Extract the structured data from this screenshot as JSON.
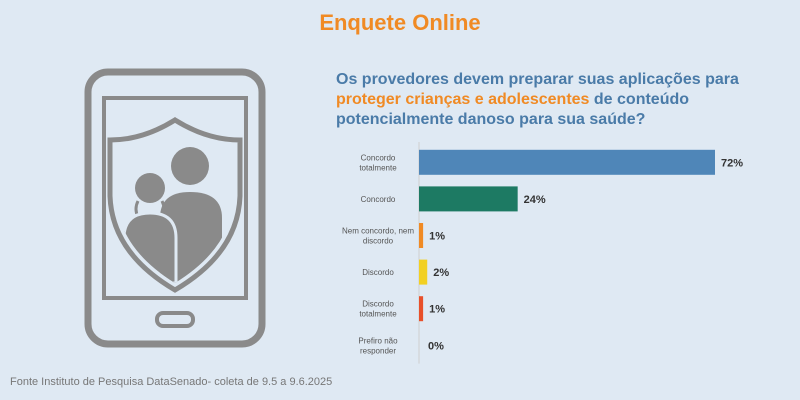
{
  "header": {
    "title": "Enquete Online"
  },
  "question": {
    "part1": "Os provedores devem preparar suas aplicações para",
    "highlight": "proteger crianças e adolescentes",
    "part2": " de conteúdo potencialmente danoso para sua saúde?"
  },
  "chart_data": {
    "type": "bar",
    "orientation": "horizontal",
    "categories": [
      [
        "Concordo",
        "totalmente"
      ],
      [
        "Concordo"
      ],
      [
        "Nem concordo, nem",
        "discordo"
      ],
      [
        "Discordo"
      ],
      [
        "Discordo",
        "totalmente"
      ],
      [
        "Prefiro não",
        "responder"
      ]
    ],
    "values": [
      72,
      24,
      1,
      2,
      1,
      0
    ],
    "value_labels": [
      "72%",
      "24%",
      "1%",
      "2%",
      "1%",
      "0%"
    ],
    "colors": [
      "#4f86b8",
      "#1d7a63",
      "#f08a24",
      "#f2d022",
      "#e8502a",
      "#999999"
    ],
    "unit": "%",
    "xlim": [
      0,
      72
    ]
  },
  "icons": {
    "illustration": "phone-shield-family-icon"
  },
  "colors": {
    "accent": "#f08a24",
    "question": "#4a7ba8",
    "background": "#dfe9f3",
    "icon": "#8a8a8a"
  },
  "source": "Fonte Instituto de Pesquisa DataSenado- coleta de 9.5 a 9.6.2025"
}
